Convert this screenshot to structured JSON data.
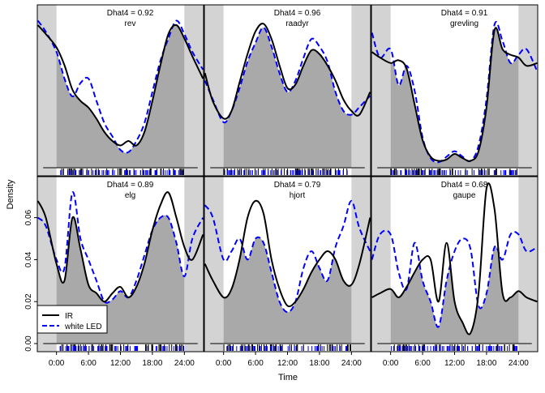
{
  "colors": {
    "ir": "#000000",
    "led": "#0000ff",
    "overlap_fill": "#a9a9a9",
    "night_shade": "#d3d3d3",
    "day_bg": "#ffffff",
    "rug_led": "#0000ff",
    "rug_ir": "#000000"
  },
  "chart_data": {
    "type": "line",
    "title": "",
    "xlabel": "Time",
    "ylabel": "Density",
    "x_range_hours": [
      -3.6,
      27.6
    ],
    "x_ticks": [
      0,
      6,
      12,
      18,
      24
    ],
    "x_tick_labels": [
      "0:00",
      "6:00",
      "12:00",
      "18:00",
      "24:00"
    ],
    "y_ticks": [
      0.0,
      0.02,
      0.04,
      0.06
    ],
    "y_tick_labels": [
      "0.00",
      "0.02",
      "0.04",
      "0.06"
    ],
    "night_shading_hours": [
      [
        -3.6,
        0
      ],
      [
        24,
        27.6
      ]
    ],
    "legend": {
      "position": "bottom-left",
      "entries": [
        "IR",
        "white LED"
      ],
      "styles": [
        "solid",
        "dashed"
      ]
    },
    "series_names": [
      "IR",
      "white LED"
    ],
    "panels": [
      {
        "species": "rev",
        "dhat_label": "Dhat4 = 0.92",
        "ylim": [
          0,
          0.068
        ],
        "hours": [
          -3.5,
          -2,
          0,
          1.5,
          3,
          4.5,
          6,
          7.5,
          9,
          10.5,
          12,
          13.5,
          15,
          16.5,
          18,
          19.5,
          21,
          22.5,
          24,
          25.5,
          27.5
        ],
        "ir": [
          0.064,
          0.06,
          0.054,
          0.046,
          0.035,
          0.03,
          0.027,
          0.022,
          0.016,
          0.012,
          0.01,
          0.012,
          0.01,
          0.016,
          0.03,
          0.046,
          0.06,
          0.064,
          0.058,
          0.05,
          0.04
        ],
        "led": [
          0.066,
          0.061,
          0.052,
          0.04,
          0.032,
          0.038,
          0.04,
          0.03,
          0.02,
          0.014,
          0.008,
          0.007,
          0.012,
          0.02,
          0.034,
          0.048,
          0.058,
          0.066,
          0.06,
          0.052,
          0.044
        ]
      },
      {
        "species": "raadyr",
        "dhat_label": "Dhat4 = 0.96",
        "ylim": [
          0,
          0.08
        ],
        "hours": [
          -3.5,
          -2,
          0,
          1.5,
          3,
          4.5,
          6,
          7.5,
          9,
          10.5,
          12,
          13.5,
          15,
          16.5,
          18,
          19.5,
          21,
          22.5,
          24,
          25.5,
          27.5
        ],
        "ir": [
          0.05,
          0.035,
          0.026,
          0.03,
          0.045,
          0.06,
          0.072,
          0.076,
          0.068,
          0.054,
          0.042,
          0.044,
          0.054,
          0.062,
          0.06,
          0.054,
          0.046,
          0.036,
          0.03,
          0.028,
          0.04
        ],
        "led": [
          0.046,
          0.036,
          0.024,
          0.03,
          0.042,
          0.056,
          0.066,
          0.074,
          0.064,
          0.05,
          0.04,
          0.046,
          0.058,
          0.068,
          0.064,
          0.056,
          0.04,
          0.03,
          0.028,
          0.032,
          0.038
        ]
      },
      {
        "species": "grevling",
        "dhat_label": "Dhat4 = 0.91",
        "ylim": [
          0,
          0.11
        ],
        "hours": [
          -3.5,
          -2,
          0,
          1.5,
          3,
          4.5,
          6,
          7.5,
          9,
          10.5,
          12,
          13.5,
          15,
          16.5,
          18,
          19.5,
          21,
          22.5,
          24,
          25.5,
          27.5
        ],
        "ir": [
          0.084,
          0.08,
          0.076,
          0.078,
          0.072,
          0.046,
          0.02,
          0.008,
          0.005,
          0.006,
          0.01,
          0.007,
          0.005,
          0.012,
          0.044,
          0.1,
          0.086,
          0.082,
          0.08,
          0.074,
          0.076
        ],
        "led": [
          0.098,
          0.08,
          0.086,
          0.06,
          0.074,
          0.056,
          0.022,
          0.007,
          0.004,
          0.008,
          0.012,
          0.008,
          0.005,
          0.016,
          0.05,
          0.104,
          0.092,
          0.076,
          0.082,
          0.086,
          0.07
        ]
      },
      {
        "species": "elg",
        "dhat_label": "Dhat4 = 0.89",
        "ylim": [
          0,
          0.078
        ],
        "hours": [
          -3.5,
          -2,
          0,
          1.5,
          3,
          4.5,
          6,
          7.5,
          9,
          10.5,
          12,
          13.5,
          15,
          16.5,
          18,
          19.5,
          21,
          22.5,
          24,
          25.5,
          27.5
        ],
        "ir": [
          0.068,
          0.06,
          0.038,
          0.03,
          0.06,
          0.045,
          0.028,
          0.024,
          0.02,
          0.024,
          0.027,
          0.022,
          0.027,
          0.038,
          0.054,
          0.066,
          0.072,
          0.06,
          0.046,
          0.04,
          0.052
        ],
        "led": [
          0.06,
          0.056,
          0.04,
          0.036,
          0.072,
          0.05,
          0.04,
          0.03,
          0.02,
          0.021,
          0.025,
          0.022,
          0.03,
          0.042,
          0.054,
          0.06,
          0.06,
          0.048,
          0.032,
          0.05,
          0.06
        ]
      },
      {
        "species": "hjort",
        "dhat_label": "Dhat4 = 0.79",
        "ylim": [
          0,
          0.078
        ],
        "hours": [
          -3.5,
          -2,
          0,
          1.5,
          3,
          4.5,
          6,
          7.5,
          9,
          10.5,
          12,
          13.5,
          15,
          16.5,
          18,
          19.5,
          21,
          22.5,
          24,
          25.5,
          27.5
        ],
        "ir": [
          0.038,
          0.03,
          0.022,
          0.026,
          0.04,
          0.06,
          0.068,
          0.062,
          0.04,
          0.026,
          0.018,
          0.02,
          0.026,
          0.034,
          0.04,
          0.044,
          0.04,
          0.03,
          0.028,
          0.038,
          0.06
        ],
        "led": [
          0.066,
          0.06,
          0.04,
          0.044,
          0.05,
          0.04,
          0.05,
          0.048,
          0.034,
          0.02,
          0.015,
          0.02,
          0.036,
          0.044,
          0.036,
          0.03,
          0.046,
          0.056,
          0.068,
          0.055,
          0.044
        ]
      },
      {
        "species": "gaupe",
        "dhat_label": "Dhat4 = 0.68",
        "ylim": [
          0,
          0.078
        ],
        "hours": [
          -3.5,
          -2,
          0,
          1.5,
          3,
          4.5,
          6,
          7.5,
          9,
          10.5,
          12,
          13.5,
          15,
          16.5,
          18,
          19.5,
          21,
          22.5,
          24,
          25.5,
          27.5
        ],
        "ir": [
          0.022,
          0.024,
          0.026,
          0.022,
          0.027,
          0.034,
          0.04,
          0.04,
          0.02,
          0.048,
          0.02,
          0.01,
          0.005,
          0.024,
          0.074,
          0.064,
          0.024,
          0.022,
          0.025,
          0.022,
          0.02
        ],
        "led": [
          0.04,
          0.052,
          0.052,
          0.034,
          0.026,
          0.048,
          0.03,
          0.02,
          0.008,
          0.03,
          0.044,
          0.05,
          0.045,
          0.018,
          0.024,
          0.046,
          0.04,
          0.052,
          0.052,
          0.044,
          0.046
        ]
      }
    ]
  }
}
